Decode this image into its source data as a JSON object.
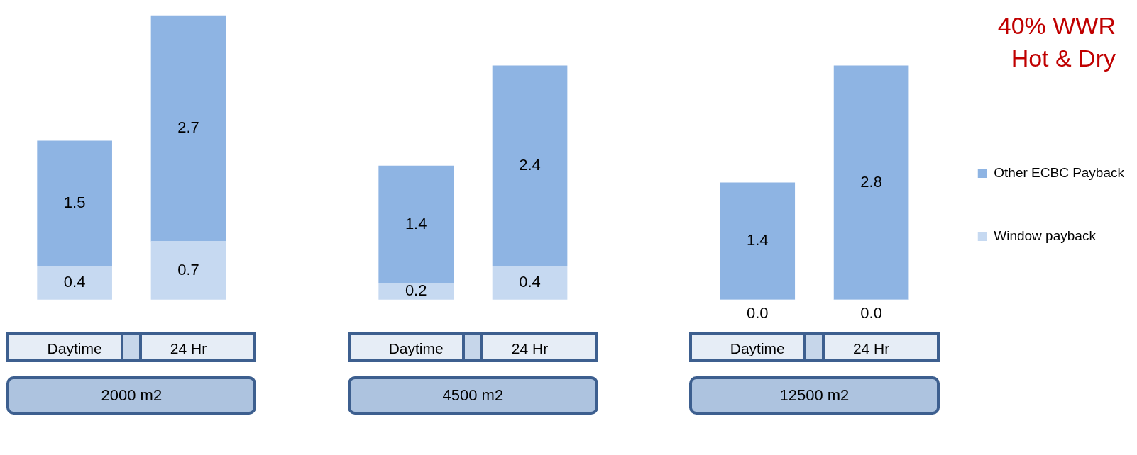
{
  "chart_data": {
    "type": "bar",
    "title": "40% WWR",
    "subtitle": "Hot & Dry",
    "categories": [
      "Daytime",
      "24 Hr",
      null,
      "Daytime",
      "24 Hr",
      null,
      "Daytime",
      "24 Hr"
    ],
    "stacked": true,
    "series": [
      {
        "name": "Window payback",
        "color": "#c6d9f1",
        "values": [
          0.4,
          0.7,
          null,
          0.2,
          0.4,
          null,
          0.0,
          0.0
        ],
        "value_labels": [
          "0.4",
          "0.7",
          null,
          "0.2",
          "0.4",
          null,
          "0.0",
          "0.0"
        ]
      },
      {
        "name": "Other ECBC Payback",
        "color": "#8eb4e3",
        "values": [
          1.5,
          2.7,
          null,
          1.4,
          2.4,
          null,
          1.4,
          2.8
        ],
        "value_labels": [
          "1.5",
          "2.7",
          null,
          "1.4",
          "2.4",
          null,
          "1.4",
          "2.8"
        ]
      }
    ],
    "annotations": [
      "2000 m2",
      "4500 m2",
      "12500 m2"
    ],
    "legend": "right",
    "grid": false
  }
}
